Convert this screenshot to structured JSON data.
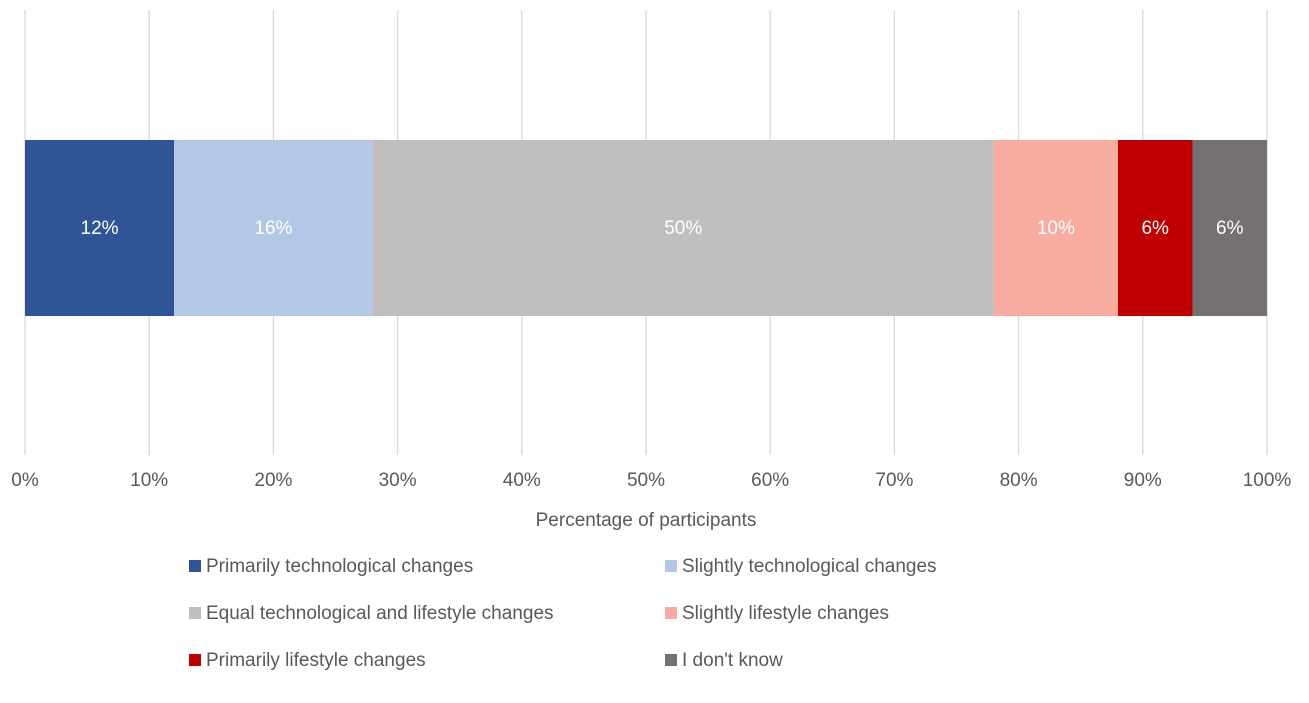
{
  "chart_data": {
    "type": "bar",
    "orientation": "horizontal",
    "stacked": true,
    "x_label": "Percentage of participants",
    "categories": [
      null
    ],
    "series": [
      {
        "name": "Primarily technological changes",
        "color": "#2f5597",
        "values": [
          12
        ],
        "value_labels": [
          "12%"
        ]
      },
      {
        "name": "Slightly technological changes",
        "color": "#b4c7e7",
        "values": [
          16
        ],
        "value_labels": [
          "16%"
        ]
      },
      {
        "name": "Equal technological and lifestyle changes",
        "color": "#bfbfbf",
        "values": [
          50
        ],
        "value_labels": [
          "50%"
        ]
      },
      {
        "name": "Slightly lifestyle changes",
        "color": "#f8aca0",
        "values": [
          10
        ],
        "value_labels": [
          "10%"
        ]
      },
      {
        "name": "Primarily lifestyle changes",
        "color": "#c00000",
        "values": [
          6
        ],
        "value_labels": [
          "6%"
        ]
      },
      {
        "name": "I don't know",
        "color": "#767171",
        "values": [
          6
        ],
        "value_labels": [
          "6%"
        ]
      }
    ],
    "xlim": [
      0,
      100
    ],
    "xticks": [
      {
        "value": 0,
        "label": "0%"
      },
      {
        "value": 10,
        "label": "10%"
      },
      {
        "value": 20,
        "label": "20%"
      },
      {
        "value": 30,
        "label": "30%"
      },
      {
        "value": 40,
        "label": "40%"
      },
      {
        "value": 50,
        "label": "50%"
      },
      {
        "value": 60,
        "label": "60%"
      },
      {
        "value": 70,
        "label": "70%"
      },
      {
        "value": 80,
        "label": "80%"
      },
      {
        "value": 90,
        "label": "90%"
      },
      {
        "value": 100,
        "label": "100%"
      }
    ],
    "grid": true,
    "legend": "bottom"
  }
}
